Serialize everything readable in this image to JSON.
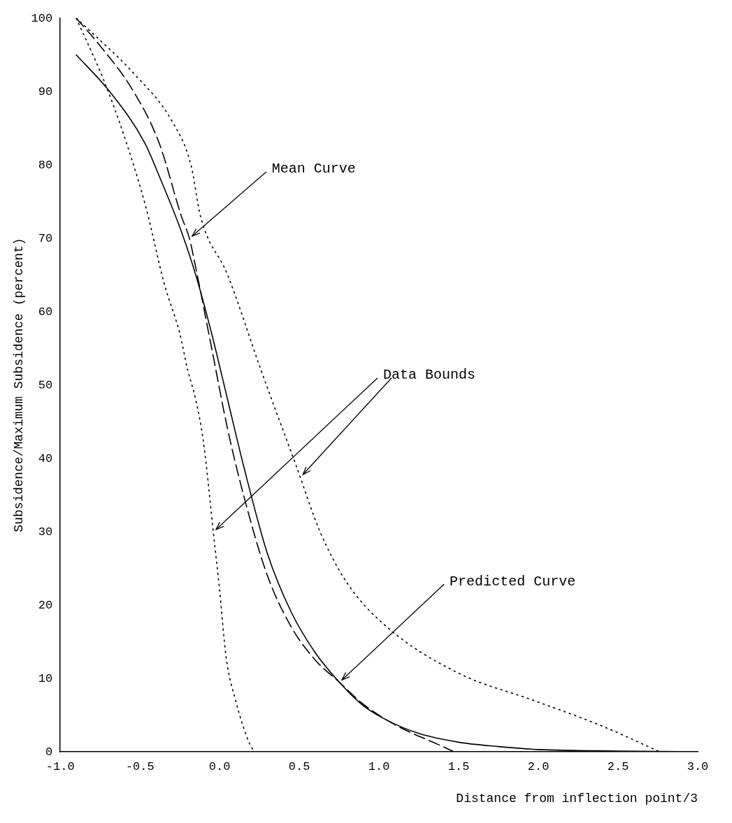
{
  "chart_data": {
    "type": "line",
    "xlabel": "Distance from inflection point/3",
    "ylabel": "Subsidence/Maximum Subsidence (percent)",
    "xlim": [
      -1,
      3
    ],
    "xticks": [
      {
        "value": -1,
        "label": "-1.0"
      },
      {
        "value": -0.5,
        "label": "-0.5"
      },
      {
        "value": 0,
        "label": "0.0"
      },
      {
        "value": 0.5,
        "label": "0.5"
      },
      {
        "value": 1,
        "label": "1.0"
      },
      {
        "value": 1.5,
        "label": "1.5"
      },
      {
        "value": 2,
        "label": "2.0"
      },
      {
        "value": 2.5,
        "label": "2.5"
      },
      {
        "value": 3,
        "label": "3.0"
      }
    ],
    "ylim": [
      0,
      100
    ],
    "yticks": [
      0,
      10,
      20,
      30,
      40,
      50,
      60,
      70,
      80,
      90,
      100
    ],
    "series": [
      {
        "color": "#000000",
        "line_style": "dashed",
        "x": [
          -0.9,
          -0.76,
          -0.54,
          -0.38,
          -0.24,
          -0.19,
          -0.15,
          -0.05,
          0.05,
          0.15,
          0.3,
          0.45,
          0.6,
          0.75,
          0.9,
          1.05,
          1.2,
          1.35,
          1.47
        ],
        "values": [
          100,
          96.5,
          90,
          83,
          73,
          70,
          66,
          55,
          44,
          35,
          24,
          17,
          12.5,
          9.5,
          6.5,
          4.3,
          2.6,
          1.2,
          0
        ]
      },
      {
        "color": "#000000",
        "line_style": "solid",
        "x": [
          -0.9,
          -0.69,
          -0.47,
          -0.37,
          -0.25,
          -0.15,
          -0.05,
          0.05,
          0.15,
          0.3,
          0.45,
          0.6,
          0.75,
          0.9,
          1.05,
          1.25,
          1.5,
          1.75,
          2.0,
          2.5,
          3.0
        ],
        "values": [
          95,
          90,
          83,
          78,
          71.5,
          65,
          57,
          48,
          39,
          27,
          19,
          13.5,
          9.5,
          6.3,
          4.3,
          2.5,
          1.3,
          0.7,
          0.3,
          0.1,
          0
        ]
      },
      {
        "color": "#000000",
        "line_style": "dotted",
        "x": [
          -0.9,
          -0.73,
          -0.6,
          -0.46,
          -0.35,
          -0.25,
          -0.2,
          -0.15,
          -0.1,
          -0.04,
          0.0,
          0.04,
          0.1,
          0.19,
          0.22
        ],
        "values": [
          100,
          91.7,
          84,
          74,
          64,
          57,
          52,
          48,
          42,
          30,
          22,
          13,
          7,
          1,
          0
        ]
      },
      {
        "color": "#000000",
        "line_style": "dotted",
        "x": [
          -0.9,
          -0.8,
          -0.54,
          -0.3,
          -0.18,
          -0.12,
          0.05,
          0.26,
          0.48,
          0.63,
          0.8,
          1.05,
          1.5,
          1.97,
          2.4,
          2.76
        ],
        "values": [
          100,
          98,
          92.5,
          86,
          80,
          73,
          65,
          52,
          39,
          30,
          23,
          17,
          10.7,
          7,
          3.5,
          0
        ]
      }
    ],
    "annotations": [
      {
        "text": "Mean Curve",
        "x": -0.19,
        "y": 70
      },
      {
        "text": "Data Bounds",
        "x": -0.04,
        "y": 30
      },
      {
        "text": "Predicted Curve",
        "x": 0.75,
        "y": 9.5
      }
    ]
  }
}
